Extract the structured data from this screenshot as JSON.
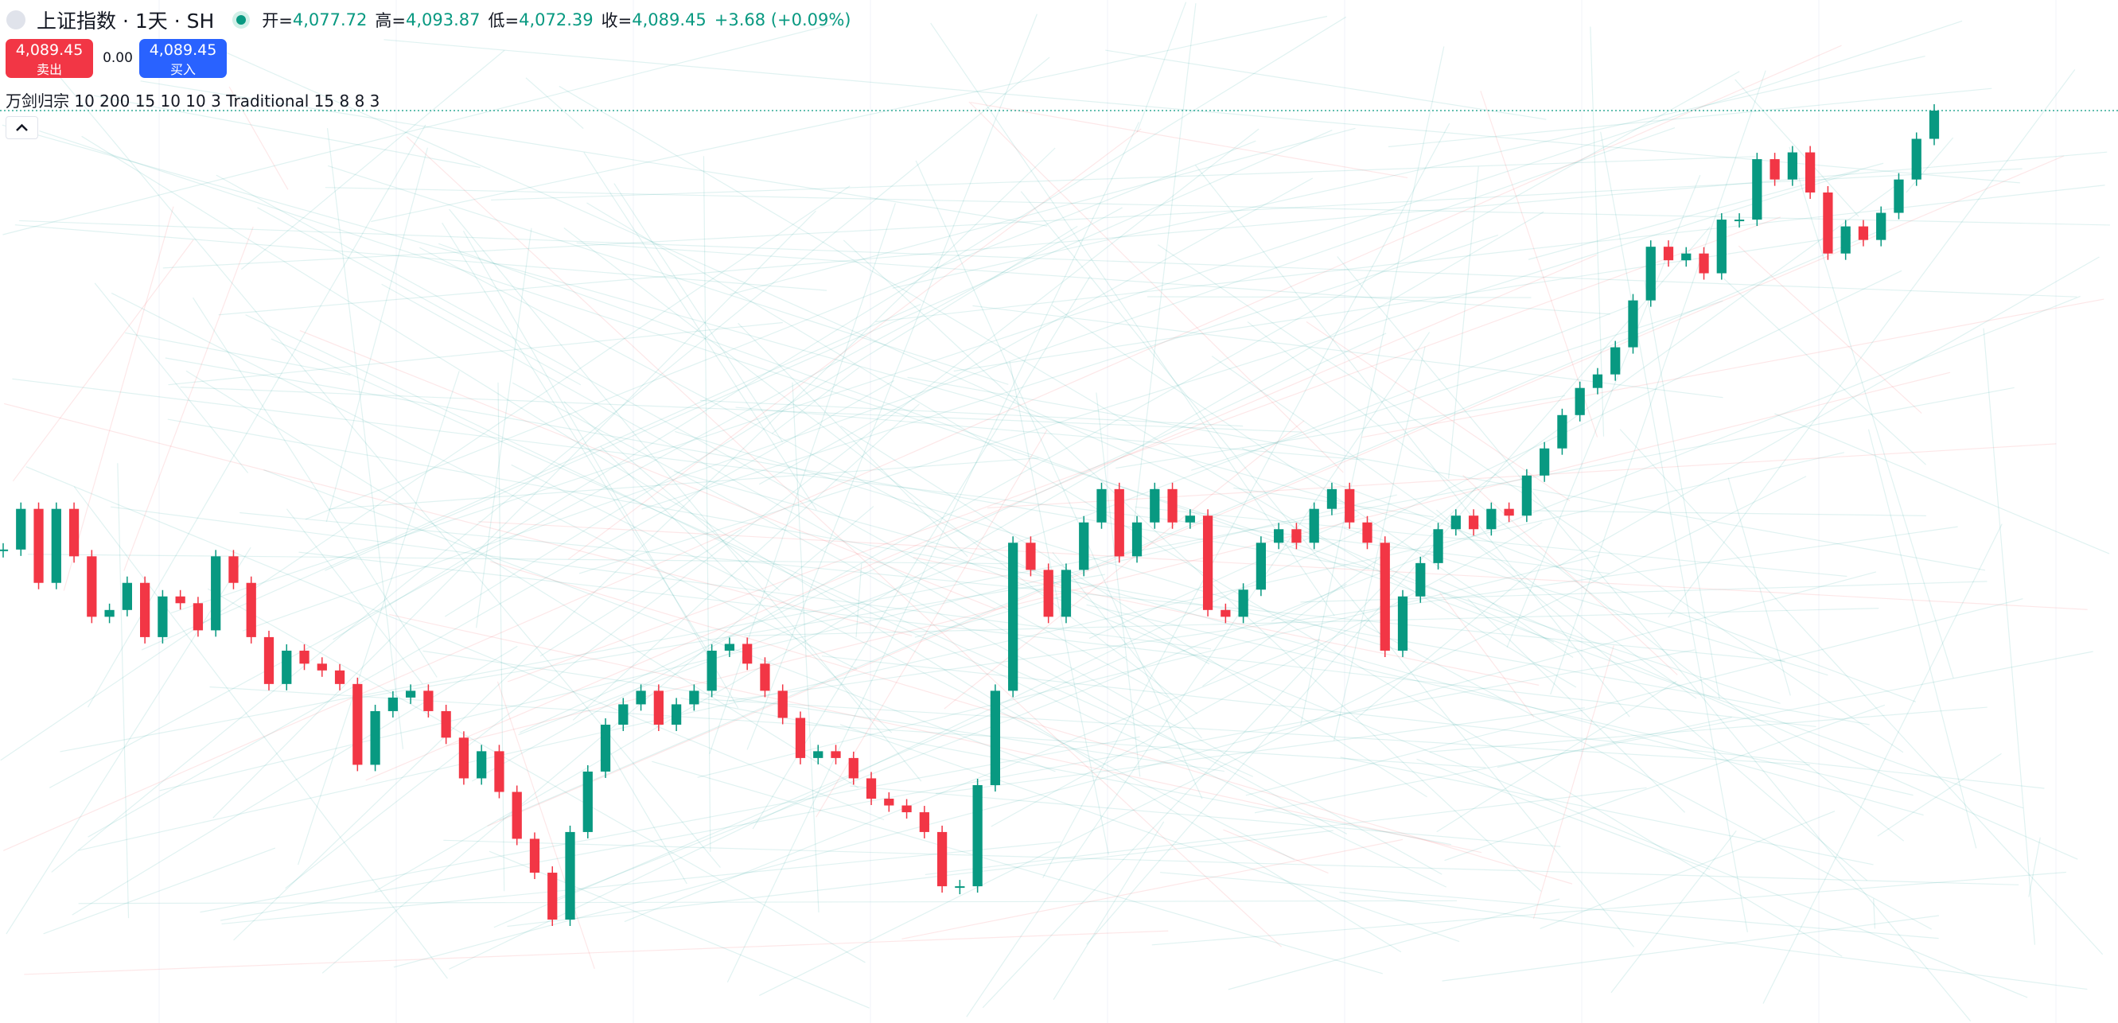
{
  "header": {
    "symbol": "上证指数 · 1天 · SH",
    "ohlc": [
      {
        "label": "开=",
        "value": "4,077.72"
      },
      {
        "label": "高=",
        "value": "4,093.87"
      },
      {
        "label": "低=",
        "value": "4,072.39"
      },
      {
        "label": "收=",
        "value": "4,089.45"
      }
    ],
    "change": "+3.68 (+0.09%)"
  },
  "trade": {
    "sell": {
      "price": "4,089.45",
      "label": "卖出"
    },
    "spread": "0.00",
    "buy": {
      "price": "4,089.45",
      "label": "买入"
    }
  },
  "indicator": "万剑归宗 10 200 15 10 10 3 Traditional 15 8 8 3",
  "chart_data": {
    "type": "candlestick",
    "up_color": "#089981",
    "down_color": "#f23645",
    "closes": [
      3312,
      3384,
      3253,
      3384,
      3300,
      3193,
      3205,
      3253,
      3157,
      3229,
      3217,
      3169,
      3300,
      3253,
      3157,
      3074,
      3133,
      3110,
      3098,
      3074,
      2931,
      3026,
      3050,
      3062,
      3026,
      2979,
      2907,
      2955,
      2883,
      2800,
      2740,
      2657,
      2812,
      2919,
      3002,
      3038,
      3062,
      3002,
      3038,
      3062,
      3133,
      3145,
      3110,
      3062,
      3014,
      2943,
      2955,
      2943,
      2907,
      2871,
      2859,
      2847,
      2812,
      2716,
      2716,
      2895,
      3062,
      3324,
      3276,
      3193,
      3276,
      3360,
      3419,
      3300,
      3360,
      3419,
      3360,
      3372,
      3205,
      3193,
      3241,
      3324,
      3348,
      3324,
      3384,
      3419,
      3360,
      3324,
      3133,
      3229,
      3288,
      3348,
      3372,
      3348,
      3384,
      3372,
      3443,
      3491,
      3550,
      3598,
      3622,
      3670,
      3753,
      3848,
      3824,
      3836,
      3801,
      3896,
      3896,
      4003,
      3967,
      4015,
      3944,
      3836,
      3884,
      3860,
      3908,
      3967,
      4039,
      4089
    ]
  }
}
